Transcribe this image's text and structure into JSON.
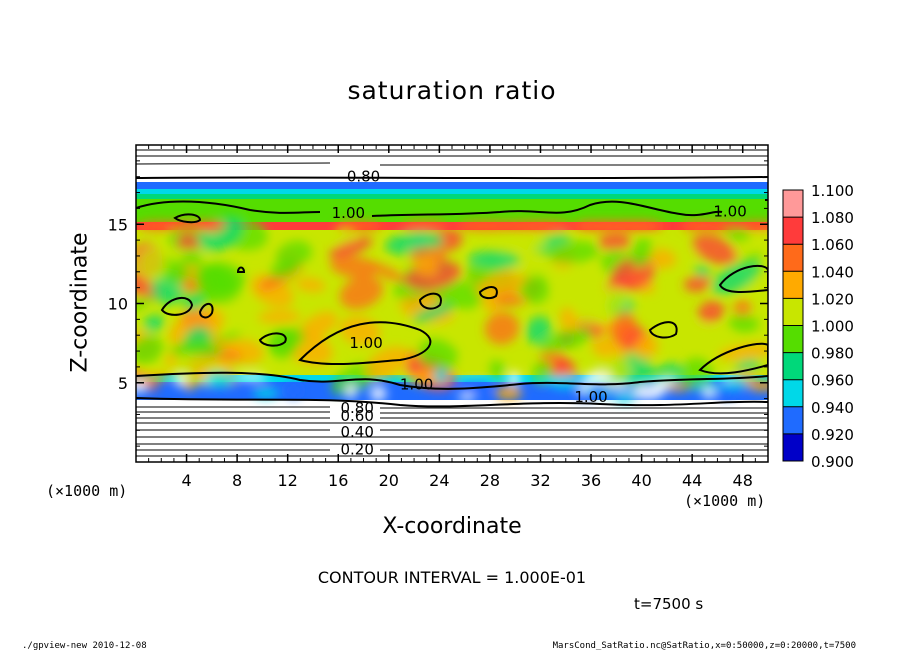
{
  "chart_data": {
    "type": "heatmap",
    "title": "saturation ratio",
    "xlabel": "X-coordinate",
    "ylabel": "Z-coordinate",
    "x_unit_label": "(×1000 m)",
    "xlim": [
      0,
      50
    ],
    "ylim": [
      0,
      20
    ],
    "x_ticks": [
      4,
      8,
      12,
      16,
      20,
      24,
      28,
      32,
      36,
      40,
      44,
      48
    ],
    "y_ticks": [
      5,
      10,
      15
    ],
    "colorbar": {
      "levels": [
        "1.100",
        "1.080",
        "1.060",
        "1.040",
        "1.020",
        "1.000",
        "0.980",
        "0.960",
        "0.940",
        "0.920",
        "0.900"
      ],
      "colors": [
        "#ff9999",
        "#ff3b3b",
        "#ff6a1a",
        "#ffaa00",
        "#c8e600",
        "#55dd00",
        "#00d87a",
        "#00d8e8",
        "#1f6bff",
        "#0000c8",
        "#7a1fbf"
      ]
    },
    "contour_labels": [
      {
        "text": "0.80",
        "x": 18.0,
        "z": 18.0
      },
      {
        "text": "1.00",
        "x": 16.8,
        "z": 15.7
      },
      {
        "text": "1.00",
        "x": 47.0,
        "z": 15.8
      },
      {
        "text": "1.00",
        "x": 18.2,
        "z": 7.5
      },
      {
        "text": "1.00",
        "x": 22.2,
        "z": 4.9
      },
      {
        "text": "1.00",
        "x": 36.0,
        "z": 4.1
      },
      {
        "text": "0.80",
        "x": 17.5,
        "z": 3.4
      },
      {
        "text": "0.60",
        "x": 17.5,
        "z": 2.9
      },
      {
        "text": "0.40",
        "x": 17.5,
        "z": 1.9
      },
      {
        "text": "0.20",
        "x": 17.5,
        "z": 0.8
      }
    ],
    "contour_interval_text": "CONTOUR INTERVAL = 1.000E-01"
  },
  "time_label": "t=7500 s",
  "footer": {
    "left": "./gpview-new   2010-12-08",
    "right": "MarsCond_SatRatio.nc@SatRatio,x=0:50000,z=0:20000,t=7500"
  }
}
